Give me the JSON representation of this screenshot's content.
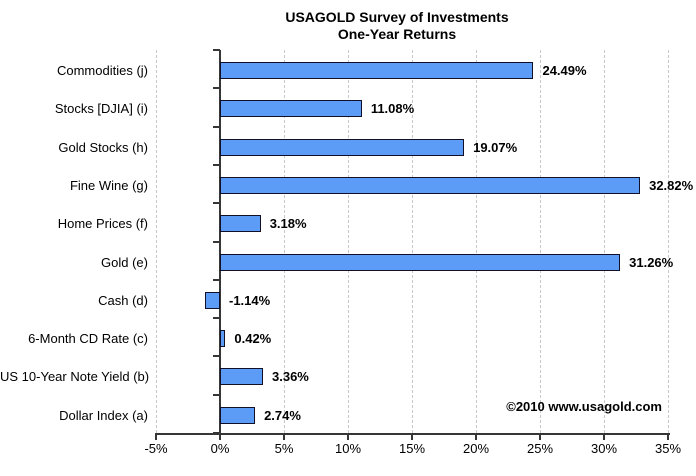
{
  "chart_data": {
    "type": "bar",
    "orientation": "horizontal",
    "title": "USAGOLD Survey of Investments",
    "subtitle": "One-Year Returns",
    "categories": [
      "Commodities (j)",
      "Stocks [DJIA] (i)",
      "Gold Stocks (h)",
      "Fine Wine (g)",
      "Home Prices (f)",
      "Gold (e)",
      "Cash (d)",
      "6-Month CD Rate (c)",
      "US 10-Year Note Yield (b)",
      "Dollar Index (a)"
    ],
    "values": [
      24.49,
      11.08,
      19.07,
      32.82,
      3.18,
      31.26,
      -1.14,
      0.42,
      3.36,
      2.74
    ],
    "value_labels": [
      "24.49%",
      "11.08%",
      "19.07%",
      "32.82%",
      "3.18%",
      "31.26%",
      "-1.14%",
      "0.42%",
      "3.36%",
      "2.74%"
    ],
    "xlabel": "",
    "ylabel": "",
    "xlim": [
      -5,
      35
    ],
    "x_ticks": [
      "-5%",
      "0%",
      "5%",
      "10%",
      "15%",
      "20%",
      "25%",
      "30%",
      "35%"
    ],
    "x_tick_values": [
      -5,
      0,
      5,
      10,
      15,
      20,
      25,
      30,
      35
    ],
    "grid": "vertical dashed gridlines at every 5% step, solid axis at 0%",
    "legend": "none",
    "annotations": [
      "©2010 www.usagold.com"
    ],
    "colors": {
      "bar_fill": "#5c9cf7",
      "bar_border": "#101028",
      "axis": "#363636",
      "gridline": "#c8c8c8",
      "text": "#000000",
      "background": "#ffffff"
    }
  },
  "footer": {
    "copyright": "©2010 www.usagold.com"
  }
}
